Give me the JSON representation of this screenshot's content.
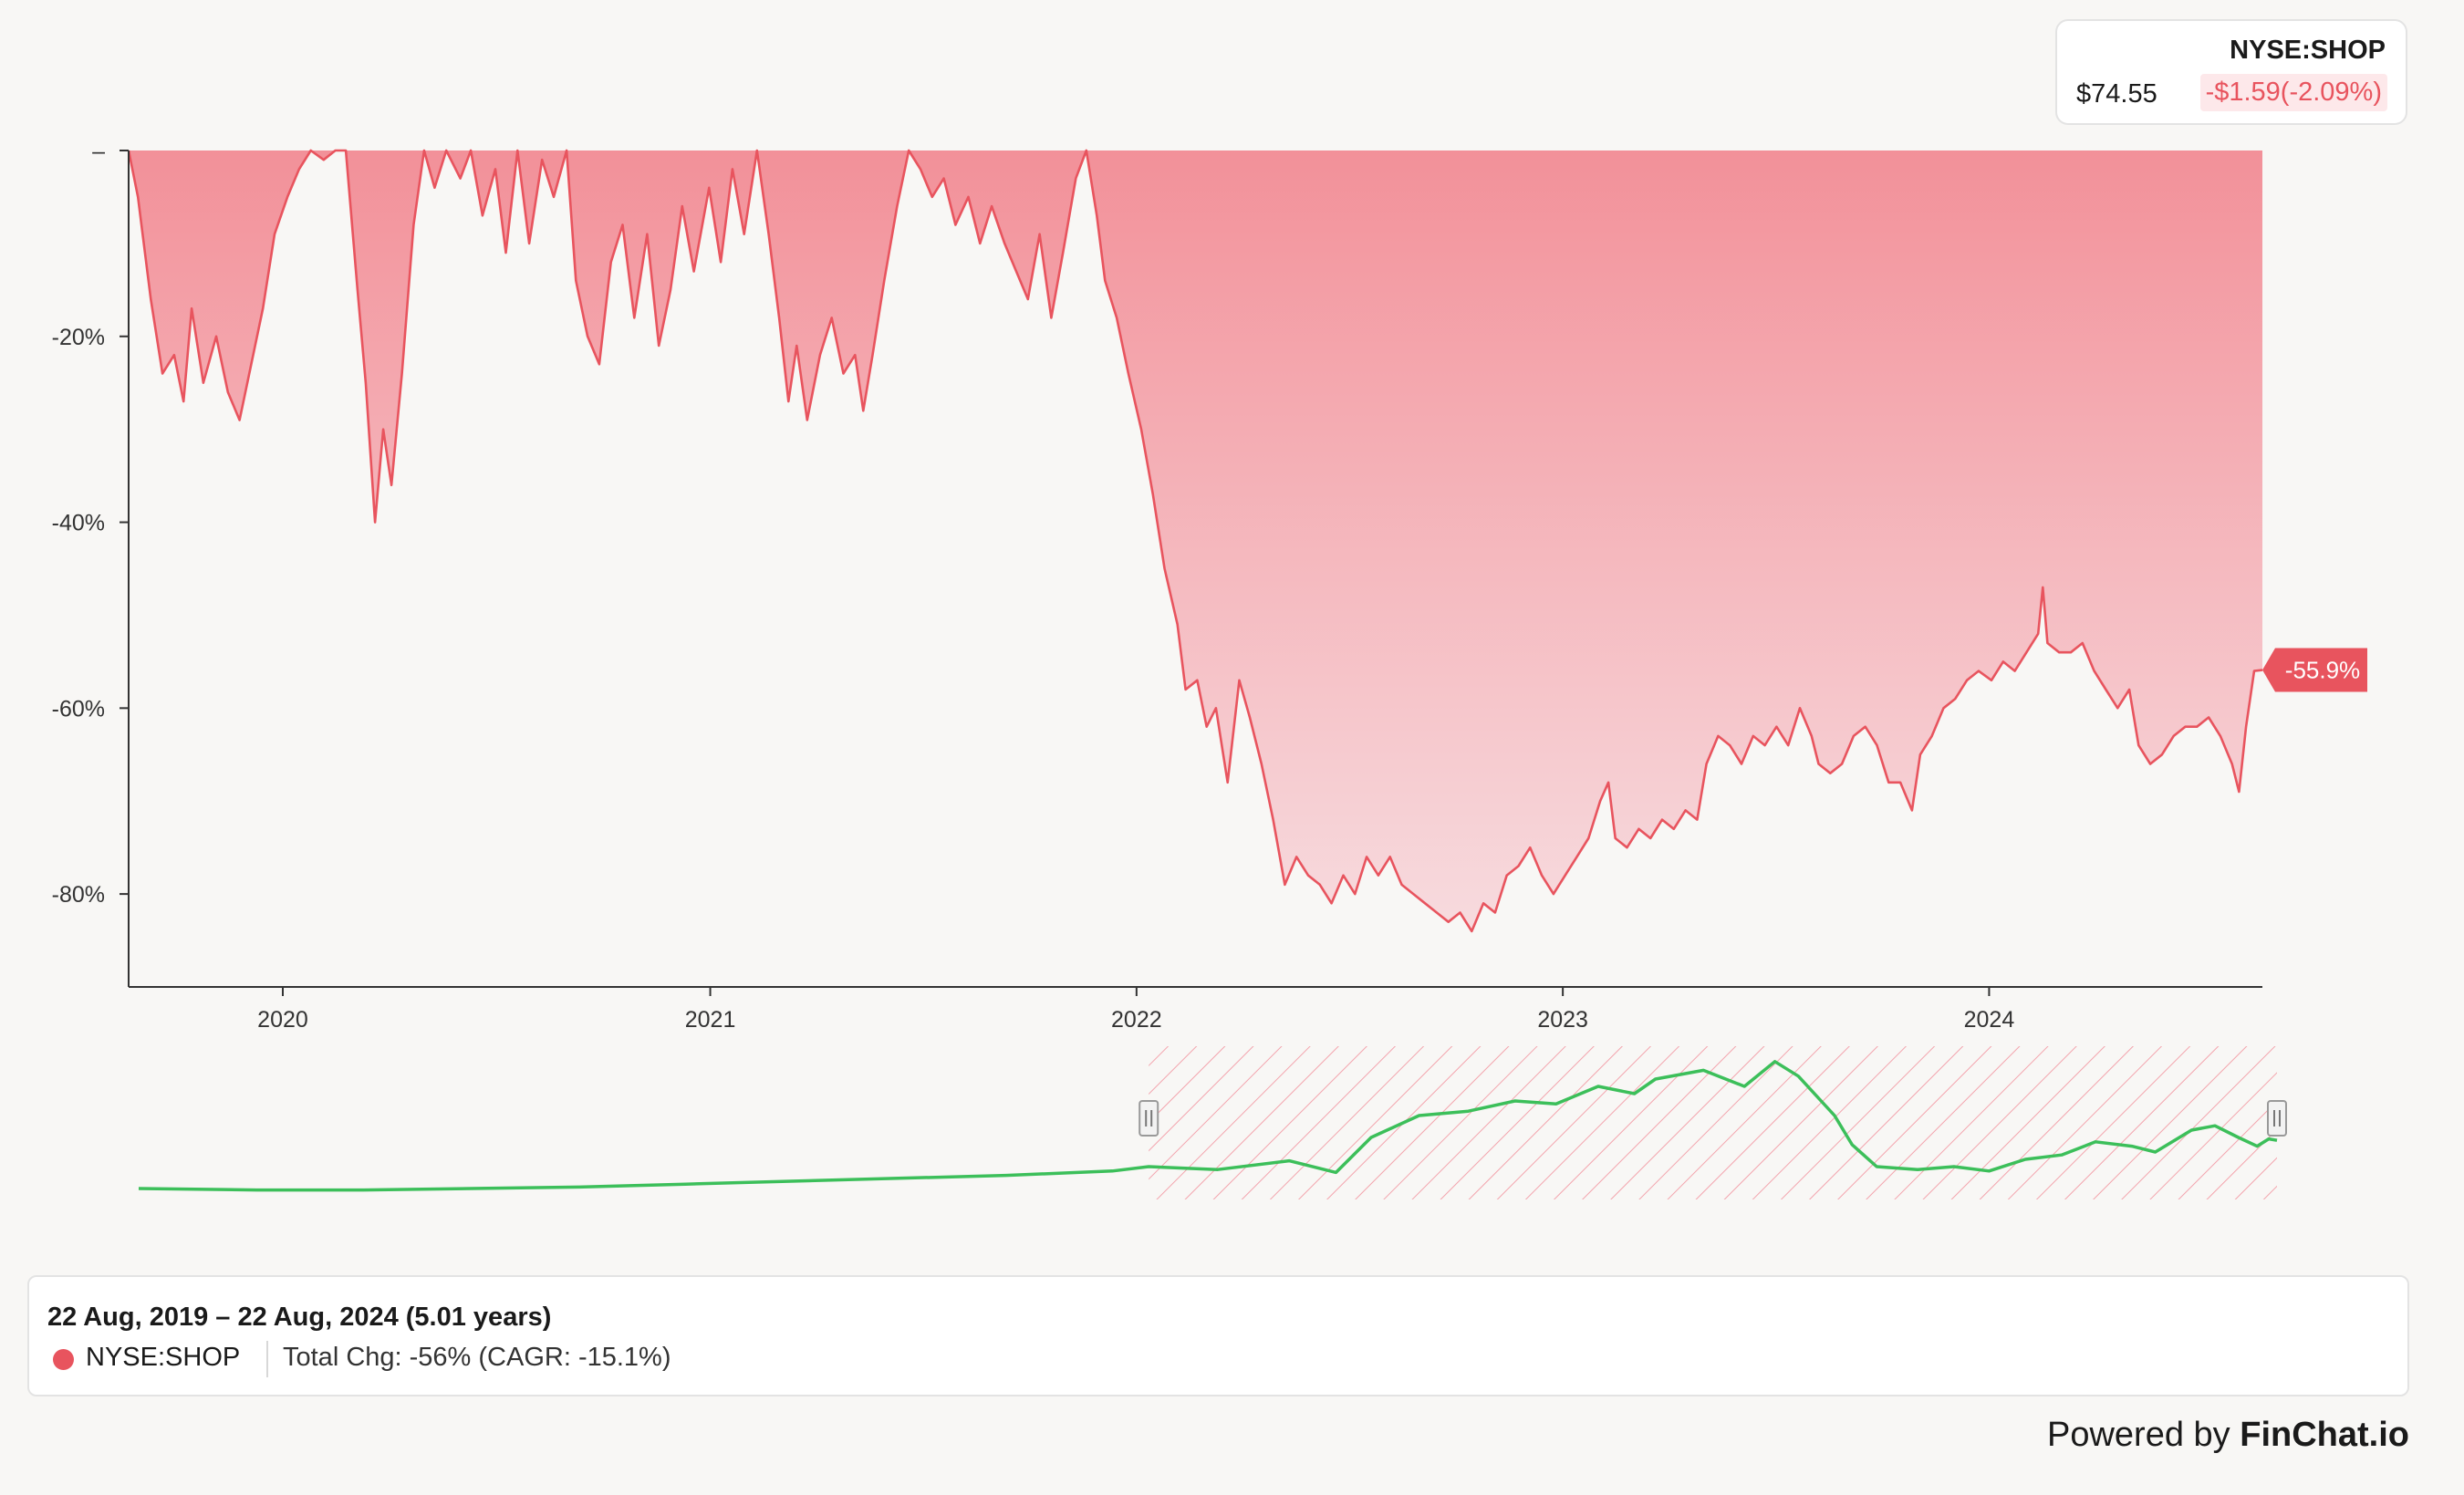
{
  "quote": {
    "ticker": "NYSE:SHOP",
    "price": "$74.55",
    "change": "-$1.59(-2.09%)"
  },
  "summary": {
    "range": "22 Aug, 2019 – 22 Aug, 2024 (5.01 years)",
    "ticker": "NYSE:SHOP",
    "change": "Total Chg: -56% (CAGR: -15.1%)"
  },
  "branding": {
    "powered_prefix": "Powered by ",
    "brand": "FinChat.io"
  },
  "colors": {
    "drawdown": "#e8545e",
    "navigator_line": "#3cbf5a",
    "axis": "#333333"
  },
  "chart_data": {
    "type": "area",
    "description_series": "NYSE:SHOP",
    "ylim": [
      -90,
      0
    ],
    "yticks": [
      0,
      -20,
      -40,
      -60,
      -80
    ],
    "ytick_labels": [
      "–",
      "-20%",
      "-40%",
      "-60%",
      "-80%"
    ],
    "xlim": [
      "2019-08-22",
      "2024-08-22"
    ],
    "xticks": [
      "2020-01-01",
      "2021-01-01",
      "2022-01-01",
      "2023-01-01",
      "2024-01-01"
    ],
    "xtick_labels": [
      "2020",
      "2021",
      "2022",
      "2023",
      "2024"
    ],
    "end_label": "-55.9%",
    "grid": false,
    "series": [
      {
        "name": "NYSE:SHOP",
        "points": [
          [
            "2019-08-22",
            0
          ],
          [
            "2019-08-30",
            -5
          ],
          [
            "2019-09-10",
            -16
          ],
          [
            "2019-09-20",
            -24
          ],
          [
            "2019-09-30",
            -22
          ],
          [
            "2019-10-08",
            -27
          ],
          [
            "2019-10-15",
            -17
          ],
          [
            "2019-10-25",
            -25
          ],
          [
            "2019-11-05",
            -20
          ],
          [
            "2019-11-15",
            -26
          ],
          [
            "2019-11-25",
            -29
          ],
          [
            "2019-12-05",
            -23
          ],
          [
            "2019-12-15",
            -17
          ],
          [
            "2019-12-25",
            -9
          ],
          [
            "2020-01-05",
            -5
          ],
          [
            "2020-01-15",
            -2
          ],
          [
            "2020-01-25",
            0
          ],
          [
            "2020-02-05",
            -1
          ],
          [
            "2020-02-15",
            0
          ],
          [
            "2020-02-24",
            0
          ],
          [
            "2020-03-05",
            -15
          ],
          [
            "2020-03-12",
            -25
          ],
          [
            "2020-03-20",
            -40
          ],
          [
            "2020-03-27",
            -30
          ],
          [
            "2020-04-03",
            -36
          ],
          [
            "2020-04-12",
            -24
          ],
          [
            "2020-04-22",
            -8
          ],
          [
            "2020-05-01",
            0
          ],
          [
            "2020-05-10",
            -4
          ],
          [
            "2020-05-20",
            0
          ],
          [
            "2020-06-01",
            -3
          ],
          [
            "2020-06-10",
            0
          ],
          [
            "2020-06-20",
            -7
          ],
          [
            "2020-07-01",
            -2
          ],
          [
            "2020-07-10",
            -11
          ],
          [
            "2020-07-20",
            0
          ],
          [
            "2020-07-30",
            -10
          ],
          [
            "2020-08-10",
            -1
          ],
          [
            "2020-08-20",
            -5
          ],
          [
            "2020-08-31",
            0
          ],
          [
            "2020-09-08",
            -14
          ],
          [
            "2020-09-18",
            -20
          ],
          [
            "2020-09-28",
            -23
          ],
          [
            "2020-10-08",
            -12
          ],
          [
            "2020-10-18",
            -8
          ],
          [
            "2020-10-28",
            -18
          ],
          [
            "2020-11-08",
            -9
          ],
          [
            "2020-11-18",
            -21
          ],
          [
            "2020-11-28",
            -15
          ],
          [
            "2020-12-08",
            -6
          ],
          [
            "2020-12-18",
            -13
          ],
          [
            "2020-12-31",
            -4
          ],
          [
            "2021-01-10",
            -12
          ],
          [
            "2021-01-20",
            -2
          ],
          [
            "2021-01-30",
            -9
          ],
          [
            "2021-02-10",
            0
          ],
          [
            "2021-02-20",
            -9
          ],
          [
            "2021-03-01",
            -18
          ],
          [
            "2021-03-09",
            -27
          ],
          [
            "2021-03-16",
            -21
          ],
          [
            "2021-03-25",
            -29
          ],
          [
            "2021-04-05",
            -22
          ],
          [
            "2021-04-15",
            -18
          ],
          [
            "2021-04-25",
            -24
          ],
          [
            "2021-05-05",
            -22
          ],
          [
            "2021-05-12",
            -28
          ],
          [
            "2021-05-20",
            -22
          ],
          [
            "2021-05-30",
            -14
          ],
          [
            "2021-06-10",
            -6
          ],
          [
            "2021-06-20",
            0
          ],
          [
            "2021-06-30",
            -2
          ],
          [
            "2021-07-10",
            -5
          ],
          [
            "2021-07-20",
            -3
          ],
          [
            "2021-07-30",
            -8
          ],
          [
            "2021-08-10",
            -5
          ],
          [
            "2021-08-20",
            -10
          ],
          [
            "2021-08-30",
            -6
          ],
          [
            "2021-09-10",
            -10
          ],
          [
            "2021-09-20",
            -13
          ],
          [
            "2021-09-30",
            -16
          ],
          [
            "2021-10-10",
            -9
          ],
          [
            "2021-10-20",
            -18
          ],
          [
            "2021-10-30",
            -11
          ],
          [
            "2021-11-10",
            -3
          ],
          [
            "2021-11-19",
            0
          ],
          [
            "2021-11-28",
            -7
          ],
          [
            "2021-12-05",
            -14
          ],
          [
            "2021-12-15",
            -18
          ],
          [
            "2021-12-25",
            -24
          ],
          [
            "2022-01-05",
            -30
          ],
          [
            "2022-01-15",
            -37
          ],
          [
            "2022-01-25",
            -45
          ],
          [
            "2022-02-05",
            -51
          ],
          [
            "2022-02-12",
            -58
          ],
          [
            "2022-02-22",
            -57
          ],
          [
            "2022-03-02",
            -62
          ],
          [
            "2022-03-10",
            -60
          ],
          [
            "2022-03-20",
            -68
          ],
          [
            "2022-03-30",
            -57
          ],
          [
            "2022-04-08",
            -61
          ],
          [
            "2022-04-18",
            -66
          ],
          [
            "2022-04-28",
            -72
          ],
          [
            "2022-05-08",
            -79
          ],
          [
            "2022-05-18",
            -76
          ],
          [
            "2022-05-28",
            -78
          ],
          [
            "2022-06-07",
            -79
          ],
          [
            "2022-06-17",
            -81
          ],
          [
            "2022-06-27",
            -78
          ],
          [
            "2022-07-07",
            -80
          ],
          [
            "2022-07-17",
            -76
          ],
          [
            "2022-07-27",
            -78
          ],
          [
            "2022-08-06",
            -76
          ],
          [
            "2022-08-16",
            -79
          ],
          [
            "2022-08-26",
            -80
          ],
          [
            "2022-09-05",
            -81
          ],
          [
            "2022-09-15",
            -82
          ],
          [
            "2022-09-25",
            -83
          ],
          [
            "2022-10-05",
            -82
          ],
          [
            "2022-10-15",
            -84
          ],
          [
            "2022-10-25",
            -81
          ],
          [
            "2022-11-04",
            -82
          ],
          [
            "2022-11-14",
            -78
          ],
          [
            "2022-11-24",
            -77
          ],
          [
            "2022-12-04",
            -75
          ],
          [
            "2022-12-14",
            -78
          ],
          [
            "2022-12-24",
            -80
          ],
          [
            "2023-01-03",
            -78
          ],
          [
            "2023-01-13",
            -76
          ],
          [
            "2023-01-23",
            -74
          ],
          [
            "2023-02-02",
            -70
          ],
          [
            "2023-02-09",
            -68
          ],
          [
            "2023-02-15",
            -74
          ],
          [
            "2023-02-25",
            -75
          ],
          [
            "2023-03-07",
            -73
          ],
          [
            "2023-03-17",
            -74
          ],
          [
            "2023-03-27",
            -72
          ],
          [
            "2023-04-06",
            -73
          ],
          [
            "2023-04-16",
            -71
          ],
          [
            "2023-04-26",
            -72
          ],
          [
            "2023-05-04",
            -66
          ],
          [
            "2023-05-14",
            -63
          ],
          [
            "2023-05-24",
            -64
          ],
          [
            "2023-06-03",
            -66
          ],
          [
            "2023-06-13",
            -63
          ],
          [
            "2023-06-23",
            -64
          ],
          [
            "2023-07-03",
            -62
          ],
          [
            "2023-07-13",
            -64
          ],
          [
            "2023-07-23",
            -60
          ],
          [
            "2023-08-02",
            -63
          ],
          [
            "2023-08-08",
            -66
          ],
          [
            "2023-08-18",
            -67
          ],
          [
            "2023-08-28",
            -66
          ],
          [
            "2023-09-07",
            -63
          ],
          [
            "2023-09-17",
            -62
          ],
          [
            "2023-09-27",
            -64
          ],
          [
            "2023-10-07",
            -68
          ],
          [
            "2023-10-17",
            -68
          ],
          [
            "2023-10-27",
            -71
          ],
          [
            "2023-11-03",
            -65
          ],
          [
            "2023-11-13",
            -63
          ],
          [
            "2023-11-23",
            -60
          ],
          [
            "2023-12-03",
            -59
          ],
          [
            "2023-12-13",
            -57
          ],
          [
            "2023-12-23",
            -56
          ],
          [
            "2024-01-03",
            -57
          ],
          [
            "2024-01-13",
            -55
          ],
          [
            "2024-01-23",
            -56
          ],
          [
            "2024-02-02",
            -54
          ],
          [
            "2024-02-12",
            -52
          ],
          [
            "2024-02-16",
            -47
          ],
          [
            "2024-02-20",
            -53
          ],
          [
            "2024-03-01",
            -54
          ],
          [
            "2024-03-11",
            -54
          ],
          [
            "2024-03-21",
            -53
          ],
          [
            "2024-03-31",
            -56
          ],
          [
            "2024-04-10",
            -58
          ],
          [
            "2024-04-20",
            -60
          ],
          [
            "2024-04-30",
            -58
          ],
          [
            "2024-05-08",
            -64
          ],
          [
            "2024-05-18",
            -66
          ],
          [
            "2024-05-28",
            -65
          ],
          [
            "2024-06-07",
            -63
          ],
          [
            "2024-06-17",
            -62
          ],
          [
            "2024-06-27",
            -62
          ],
          [
            "2024-07-07",
            -61
          ],
          [
            "2024-07-17",
            -63
          ],
          [
            "2024-07-27",
            -66
          ],
          [
            "2024-08-02",
            -69
          ],
          [
            "2024-08-08",
            -62
          ],
          [
            "2024-08-15",
            -56
          ],
          [
            "2024-08-22",
            -55.9
          ]
        ]
      }
    ],
    "navigator": {
      "name": "NYSE:SHOP",
      "selection": [
        "2022-01-01",
        "2024-08-22"
      ],
      "points": [
        [
          "2019-08-22",
          0.05
        ],
        [
          "2019-12-01",
          0.04
        ],
        [
          "2020-03-01",
          0.04
        ],
        [
          "2020-06-01",
          0.05
        ],
        [
          "2020-09-01",
          0.06
        ],
        [
          "2020-12-01",
          0.08
        ],
        [
          "2021-03-01",
          0.1
        ],
        [
          "2021-06-01",
          0.12
        ],
        [
          "2021-09-01",
          0.14
        ],
        [
          "2021-12-01",
          0.17
        ],
        [
          "2022-01-01",
          0.2
        ],
        [
          "2022-03-01",
          0.18
        ],
        [
          "2022-05-01",
          0.24
        ],
        [
          "2022-06-10",
          0.16
        ],
        [
          "2022-07-10",
          0.4
        ],
        [
          "2022-08-20",
          0.55
        ],
        [
          "2022-10-01",
          0.58
        ],
        [
          "2022-11-10",
          0.65
        ],
        [
          "2022-12-15",
          0.63
        ],
        [
          "2023-01-20",
          0.75
        ],
        [
          "2023-02-20",
          0.7
        ],
        [
          "2023-03-10",
          0.8
        ],
        [
          "2023-04-20",
          0.86
        ],
        [
          "2023-05-25",
          0.75
        ],
        [
          "2023-06-20",
          0.92
        ],
        [
          "2023-07-10",
          0.82
        ],
        [
          "2023-08-10",
          0.55
        ],
        [
          "2023-08-25",
          0.35
        ],
        [
          "2023-09-15",
          0.2
        ],
        [
          "2023-10-20",
          0.18
        ],
        [
          "2023-11-20",
          0.2
        ],
        [
          "2023-12-20",
          0.17
        ],
        [
          "2024-01-20",
          0.25
        ],
        [
          "2024-02-20",
          0.28
        ],
        [
          "2024-03-20",
          0.37
        ],
        [
          "2024-04-20",
          0.34
        ],
        [
          "2024-05-10",
          0.3
        ],
        [
          "2024-06-10",
          0.45
        ],
        [
          "2024-06-30",
          0.48
        ],
        [
          "2024-07-20",
          0.4
        ],
        [
          "2024-08-05",
          0.34
        ],
        [
          "2024-08-15",
          0.39
        ],
        [
          "2024-08-22",
          0.38
        ]
      ]
    }
  }
}
